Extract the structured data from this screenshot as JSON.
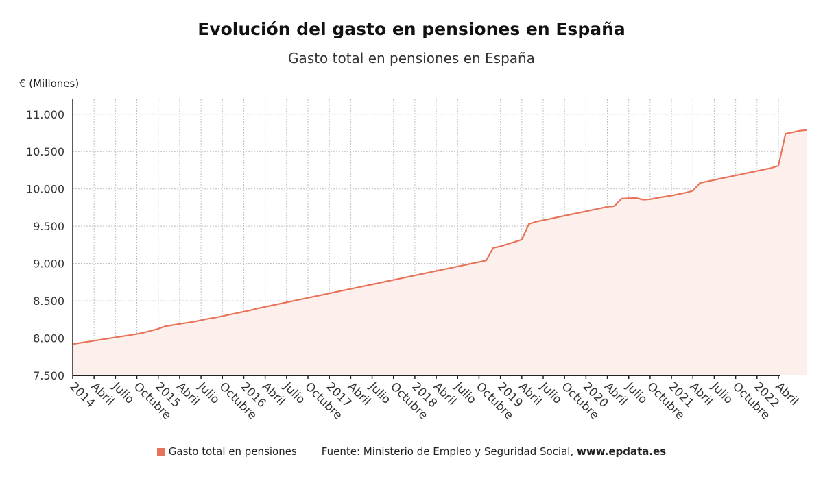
{
  "chart_data": {
    "type": "area",
    "title": "Evolución del gasto en pensiones en España",
    "subtitle": "Gasto total en pensiones en España",
    "ylabel": "€ (Millones)",
    "ylim": [
      7500,
      11200
    ],
    "yticks": [
      7500,
      8000,
      8500,
      9000,
      9500,
      10000,
      10500,
      11000
    ],
    "ytick_labels": [
      "7.500",
      "8.000",
      "8.500",
      "9.000",
      "9.500",
      "10.000",
      "10.500",
      "11.000"
    ],
    "x_start": "2014-01",
    "x_end": "2022-04",
    "x_ticks": [
      {
        "date": "2014-01",
        "label": "2014"
      },
      {
        "date": "2014-04",
        "label": "Abril"
      },
      {
        "date": "2014-07",
        "label": "Julio"
      },
      {
        "date": "2014-10",
        "label": "Octubre"
      },
      {
        "date": "2015-01",
        "label": "2015"
      },
      {
        "date": "2015-04",
        "label": "Abril"
      },
      {
        "date": "2015-07",
        "label": "Julio"
      },
      {
        "date": "2015-10",
        "label": "Octubre"
      },
      {
        "date": "2016-01",
        "label": "2016"
      },
      {
        "date": "2016-04",
        "label": "Abril"
      },
      {
        "date": "2016-07",
        "label": "Julio"
      },
      {
        "date": "2016-10",
        "label": "Octubre"
      },
      {
        "date": "2017-01",
        "label": "2017"
      },
      {
        "date": "2017-04",
        "label": "Abril"
      },
      {
        "date": "2017-07",
        "label": "Julio"
      },
      {
        "date": "2017-10",
        "label": "Octubre"
      },
      {
        "date": "2018-01",
        "label": "2018"
      },
      {
        "date": "2018-04",
        "label": "Abril"
      },
      {
        "date": "2018-07",
        "label": "Julio"
      },
      {
        "date": "2018-10",
        "label": "Octubre"
      },
      {
        "date": "2019-01",
        "label": "2019"
      },
      {
        "date": "2019-04",
        "label": "Abril"
      },
      {
        "date": "2019-07",
        "label": "Julio"
      },
      {
        "date": "2019-10",
        "label": "Octubre"
      },
      {
        "date": "2020-01",
        "label": "2020"
      },
      {
        "date": "2020-04",
        "label": "Abril"
      },
      {
        "date": "2020-07",
        "label": "Julio"
      },
      {
        "date": "2020-10",
        "label": "Octubre"
      },
      {
        "date": "2021-01",
        "label": "2021"
      },
      {
        "date": "2021-04",
        "label": "Abril"
      },
      {
        "date": "2021-07",
        "label": "Julio"
      },
      {
        "date": "2021-10",
        "label": "Octubre"
      },
      {
        "date": "2022-01",
        "label": "2022"
      },
      {
        "date": "2022-04",
        "label": "Abril"
      }
    ],
    "grid": true,
    "legend_position": "bottom",
    "series": [
      {
        "name": "Gasto total en pensiones",
        "color": "#e8735a",
        "values": [
          7920,
          7935,
          7950,
          7965,
          7980,
          7995,
          8010,
          8025,
          8040,
          8055,
          8075,
          8100,
          8125,
          8160,
          8175,
          8190,
          8205,
          8220,
          8240,
          8260,
          8275,
          8295,
          8315,
          8335,
          8355,
          8375,
          8400,
          8420,
          8440,
          8460,
          8480,
          8500,
          8520,
          8540,
          8560,
          8580,
          8600,
          8620,
          8640,
          8660,
          8680,
          8700,
          8720,
          8740,
          8760,
          8780,
          8800,
          8820,
          8840,
          8860,
          8880,
          8900,
          8920,
          8940,
          8960,
          8980,
          9000,
          9020,
          9040,
          9210,
          9230,
          9260,
          9290,
          9320,
          9530,
          9560,
          9580,
          9600,
          9620,
          9640,
          9660,
          9680,
          9700,
          9720,
          9740,
          9760,
          9770,
          9870,
          9875,
          9880,
          9855,
          9860,
          9880,
          9895,
          9910,
          9930,
          9950,
          9975,
          10080,
          10100,
          10120,
          10140,
          10160,
          10180,
          10200,
          10220,
          10240,
          10260,
          10280,
          10310,
          10740,
          10760,
          10780,
          10790
        ]
      }
    ]
  },
  "footer": {
    "legend_label": "Gasto total en pensiones",
    "source": "Fuente: Ministerio de Empleo y Seguridad Social,",
    "url": "www.epdata.es"
  }
}
